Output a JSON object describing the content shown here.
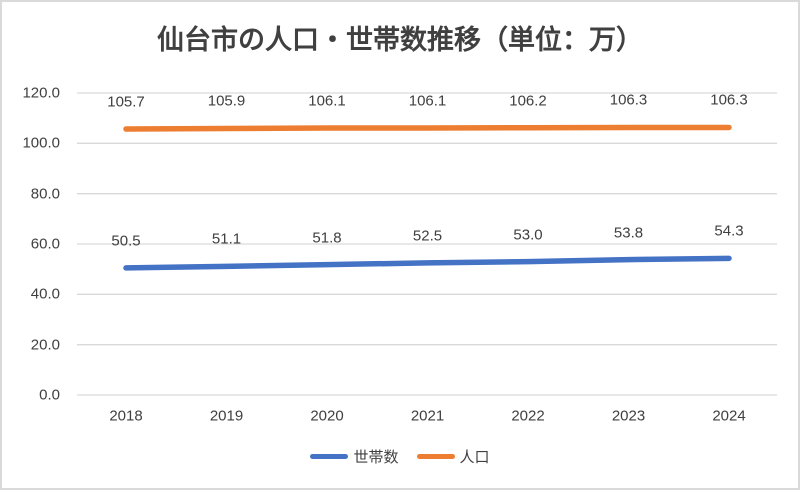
{
  "title": "仙台市の人口・世帯数推移（単位：万）",
  "colors": {
    "households_line": "#4472C4",
    "population_line": "#ED7D31",
    "gridline": "#D9D9D9",
    "text": "#404040",
    "frame_border": "#DADADA",
    "background": "#FFFFFF"
  },
  "chart_data": {
    "type": "line",
    "title": "仙台市の人口・世帯数推移（単位：万）",
    "x": [
      "2018",
      "2019",
      "2020",
      "2021",
      "2022",
      "2023",
      "2024"
    ],
    "series": [
      {
        "id": "households",
        "name": "世帯数",
        "color": "#4472C4",
        "values": [
          50.5,
          51.1,
          51.8,
          52.5,
          53.0,
          53.8,
          54.3
        ],
        "labels": [
          "50.5",
          "51.1",
          "51.8",
          "52.5",
          "53.0",
          "53.8",
          "54.3"
        ]
      },
      {
        "id": "population",
        "name": "人口",
        "color": "#ED7D31",
        "values": [
          105.7,
          105.9,
          106.1,
          106.1,
          106.2,
          106.3,
          106.3
        ],
        "labels": [
          "105.7",
          "105.9",
          "106.1",
          "106.1",
          "106.2",
          "106.3",
          "106.3"
        ]
      }
    ],
    "xlabel": "",
    "ylabel": "",
    "ylim": [
      0,
      120
    ],
    "ytick_values": [
      0,
      20,
      40,
      60,
      80,
      100,
      120
    ],
    "ytick_labels": [
      "0.0",
      "20.0",
      "40.0",
      "60.0",
      "80.0",
      "100.0",
      "120.0"
    ],
    "grid": true,
    "data_labels": true,
    "legend_position": "bottom"
  }
}
